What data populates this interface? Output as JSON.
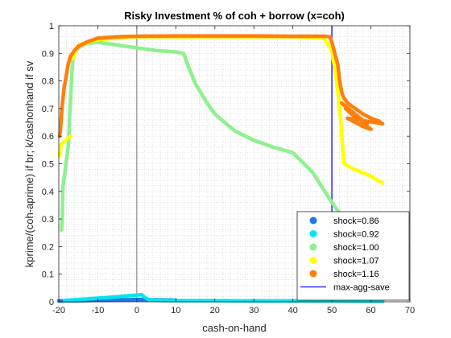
{
  "chart_data": {
    "type": "scatter",
    "title": "Risky Investment % of coh + borrow (x=coh)",
    "xlabel": "cash-on-hand",
    "ylabel": "kprime/(coh-aprime) if br; k/cashonhand if sv",
    "xlim": [
      -20,
      70
    ],
    "ylim": [
      0,
      1
    ],
    "xticks": [
      -20,
      -10,
      0,
      10,
      20,
      30,
      40,
      50,
      60,
      70
    ],
    "yticks": [
      0,
      0.1,
      0.2,
      0.3,
      0.4,
      0.5,
      0.6,
      0.7,
      0.8,
      0.9,
      1
    ],
    "grid": "minor dotted",
    "legend_position": "bottom-right",
    "reference_lines": [
      {
        "orientation": "vertical",
        "x": 0,
        "color": "#555555"
      },
      {
        "orientation": "vertical",
        "x": 50,
        "color": "#3333ff",
        "name": "max-agg-save"
      }
    ],
    "series": [
      {
        "name": "shock=0.86",
        "color": "#1f77e8",
        "mark": "dots",
        "points": [
          [
            -20,
            0.003
          ],
          [
            -10,
            0.005
          ],
          [
            0,
            0.008
          ],
          [
            10,
            0.006
          ],
          [
            30,
            0.004
          ],
          [
            50,
            0.003
          ],
          [
            63,
            0.002
          ]
        ]
      },
      {
        "name": "shock=0.92",
        "color": "#00e5ee",
        "mark": "dots",
        "points": [
          [
            -18.5,
            0.005
          ],
          [
            -15,
            0.008
          ],
          [
            -10,
            0.013
          ],
          [
            -5,
            0.018
          ],
          [
            -2,
            0.022
          ],
          [
            0,
            0.024
          ],
          [
            1.2,
            0.026
          ],
          [
            2,
            0.016
          ],
          [
            3,
            0.008
          ],
          [
            5,
            0.005
          ],
          [
            10,
            0.004
          ],
          [
            20,
            0.004
          ],
          [
            30,
            0.003
          ],
          [
            40,
            0.003
          ],
          [
            50,
            0.003
          ],
          [
            60,
            0.002
          ],
          [
            63,
            0.002
          ]
        ]
      },
      {
        "name": "shock=1.00",
        "color": "#8ff08f",
        "mark": "dots",
        "points": [
          [
            -19.3,
            0.26
          ],
          [
            -19.2,
            0.28
          ],
          [
            -19.1,
            0.3
          ],
          [
            -19.0,
            0.4
          ],
          [
            -18.9,
            0.42
          ],
          [
            -17.6,
            0.56
          ],
          [
            -17.4,
            0.6
          ],
          [
            -17.2,
            0.68
          ],
          [
            -16.9,
            0.76
          ],
          [
            -16.6,
            0.84
          ],
          [
            -16.4,
            0.88
          ],
          [
            -16,
            0.9
          ],
          [
            -15,
            0.92
          ],
          [
            -13,
            0.935
          ],
          [
            -10,
            0.94
          ],
          [
            -5,
            0.93
          ],
          [
            0,
            0.92
          ],
          [
            5,
            0.91
          ],
          [
            10,
            0.905
          ],
          [
            12,
            0.9
          ],
          [
            13,
            0.86
          ],
          [
            15,
            0.79
          ],
          [
            18,
            0.72
          ],
          [
            20,
            0.68
          ],
          [
            25,
            0.62
          ],
          [
            30,
            0.585
          ],
          [
            35,
            0.56
          ],
          [
            40,
            0.54
          ],
          [
            45,
            0.47
          ],
          [
            50,
            0.36
          ],
          [
            53,
            0.3
          ]
        ]
      },
      {
        "name": "shock=1.07",
        "color": "#ffff00",
        "mark": "dots",
        "points": [
          [
            -19.8,
            0.53
          ],
          [
            -19.6,
            0.55
          ],
          [
            -19.4,
            0.57
          ],
          [
            -17,
            0.6
          ],
          [
            -16.5,
            0.88
          ],
          [
            -15,
            0.93
          ],
          [
            -10,
            0.95
          ],
          [
            -5,
            0.955
          ],
          [
            0,
            0.96
          ],
          [
            10,
            0.96
          ],
          [
            20,
            0.96
          ],
          [
            30,
            0.96
          ],
          [
            40,
            0.96
          ],
          [
            48,
            0.955
          ],
          [
            50,
            0.91
          ],
          [
            51,
            0.82
          ],
          [
            51.8,
            0.73
          ],
          [
            52.3,
            0.65
          ],
          [
            52.7,
            0.57
          ],
          [
            53,
            0.52
          ],
          [
            53.2,
            0.5
          ],
          [
            55,
            0.485
          ],
          [
            60,
            0.455
          ],
          [
            63,
            0.43
          ]
        ]
      },
      {
        "name": "shock=1.16",
        "color": "#ff7f0e",
        "mark": "dots",
        "points": [
          [
            -19.8,
            0.6
          ],
          [
            -19.6,
            0.62
          ],
          [
            -19.4,
            0.66
          ],
          [
            -19.2,
            0.7
          ],
          [
            -18.6,
            0.78
          ],
          [
            -18.3,
            0.8
          ],
          [
            -17.6,
            0.86
          ],
          [
            -17,
            0.89
          ],
          [
            -16,
            0.91
          ],
          [
            -15,
            0.925
          ],
          [
            -13,
            0.94
          ],
          [
            -10,
            0.955
          ],
          [
            -5,
            0.96
          ],
          [
            0,
            0.962
          ],
          [
            10,
            0.963
          ],
          [
            20,
            0.963
          ],
          [
            30,
            0.963
          ],
          [
            40,
            0.962
          ],
          [
            48,
            0.962
          ],
          [
            49.5,
            0.96
          ],
          [
            50,
            0.94
          ],
          [
            51.5,
            0.86
          ],
          [
            52,
            0.8
          ],
          [
            52.5,
            0.76
          ],
          [
            53,
            0.74
          ],
          [
            54,
            0.72
          ],
          [
            55,
            0.71
          ],
          [
            56,
            0.7
          ],
          [
            58,
            0.68
          ],
          [
            60,
            0.665
          ],
          [
            62,
            0.655
          ],
          [
            63,
            0.645
          ],
          [
            54,
            0.665
          ],
          [
            56,
            0.65
          ],
          [
            58,
            0.635
          ],
          [
            60,
            0.625
          ],
          [
            53.5,
            0.7
          ],
          [
            55,
            0.68
          ],
          [
            57,
            0.66
          ],
          [
            59,
            0.645
          ],
          [
            52.5,
            0.72
          ]
        ]
      }
    ]
  },
  "legend": {
    "items": [
      {
        "label": "shock=0.86",
        "color": "#1f77e8",
        "kind": "dot"
      },
      {
        "label": "shock=0.92",
        "color": "#00e5ee",
        "kind": "dot"
      },
      {
        "label": "shock=1.00",
        "color": "#8ff08f",
        "kind": "dot"
      },
      {
        "label": "shock=1.07",
        "color": "#ffff00",
        "kind": "dot"
      },
      {
        "label": "shock=1.16",
        "color": "#ff7f0e",
        "kind": "dot"
      },
      {
        "label": "max-agg-save",
        "color": "#3333ff",
        "kind": "line"
      }
    ]
  }
}
